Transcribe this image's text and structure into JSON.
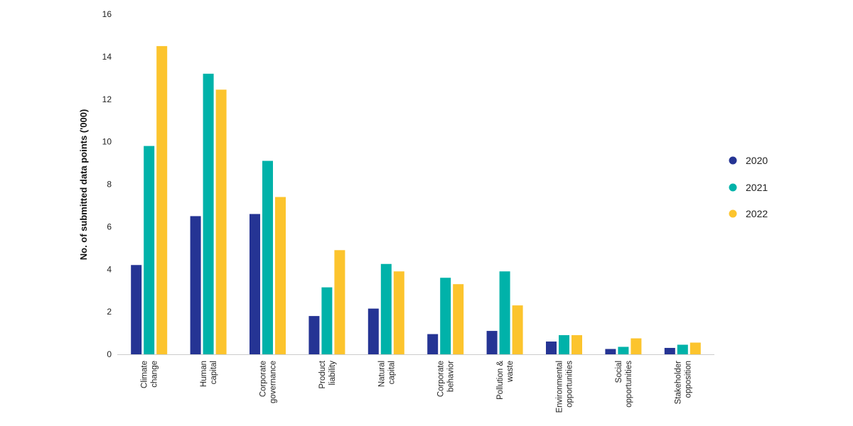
{
  "chart_data": {
    "type": "bar",
    "title": "",
    "xlabel": "",
    "ylabel": "No. of submitted data points ('000)",
    "ylim": [
      0,
      16
    ],
    "yticks": [
      0,
      2,
      4,
      6,
      8,
      10,
      12,
      14,
      16
    ],
    "grid": false,
    "legend_position": "right",
    "categories": [
      [
        "Climate",
        "change"
      ],
      [
        "Human",
        "capital"
      ],
      [
        "Corporate",
        "governance"
      ],
      [
        "Product",
        "liability"
      ],
      [
        "Natural",
        "capital"
      ],
      [
        "Corporate",
        "behavior"
      ],
      [
        "Pollution &",
        "waste"
      ],
      [
        "Environmental",
        "opportunities"
      ],
      [
        "Social",
        "opportunities"
      ],
      [
        "Stakeholder",
        "opposition"
      ]
    ],
    "series": [
      {
        "name": "2020",
        "color": "#253494",
        "values": [
          4.2,
          6.5,
          6.6,
          1.8,
          2.15,
          0.95,
          1.1,
          0.6,
          0.25,
          0.3
        ]
      },
      {
        "name": "2021",
        "color": "#00b2a9",
        "values": [
          9.8,
          13.2,
          9.1,
          3.15,
          4.25,
          3.6,
          3.9,
          0.9,
          0.35,
          0.45
        ]
      },
      {
        "name": "2022",
        "color": "#fcc42d",
        "values": [
          14.5,
          12.45,
          7.4,
          4.9,
          3.9,
          3.3,
          2.3,
          0.9,
          0.75,
          0.55
        ]
      }
    ]
  }
}
